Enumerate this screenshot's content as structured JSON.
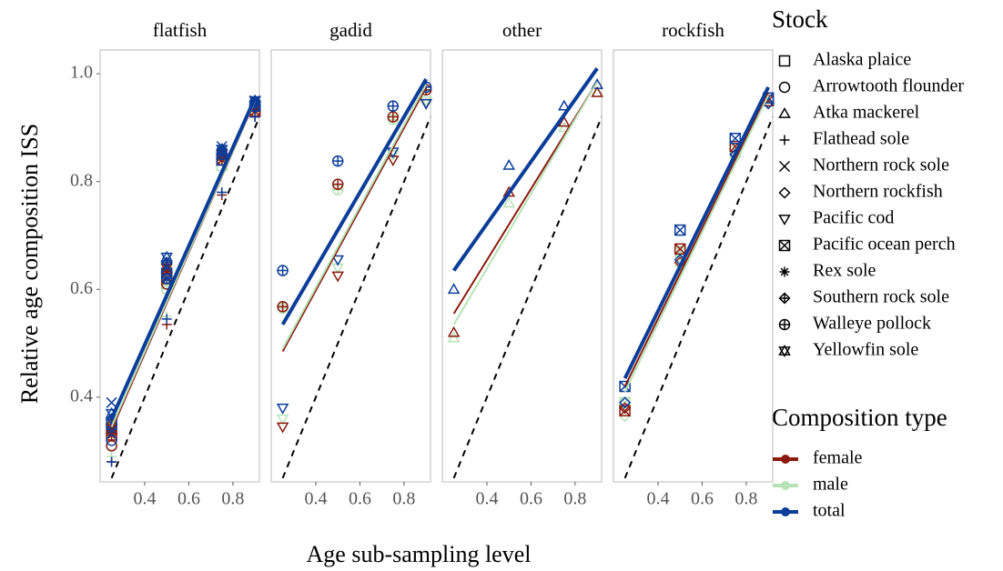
{
  "chart_data": {
    "type": "scatter",
    "y_label": "Relative age composition ISS",
    "x_label": "Age sub-sampling level",
    "ylim": [
      0.243,
      1.044
    ],
    "yticks": [
      0.4,
      0.6,
      0.8,
      {
        "value": 1.0,
        "label": "1.0"
      }
    ],
    "xlim": [
      0.198,
      0.92
    ],
    "xticks": [
      0.4,
      0.6,
      0.8
    ],
    "stock_title": "Stock",
    "stocks": [
      "Alaska plaice",
      "Arrowtooth flounder",
      "Atka mackerel",
      "Flathead sole",
      "Northern rock sole",
      "Northern rockfish",
      "Pacific cod",
      "Pacific ocean perch",
      "Rex sole",
      "Southern rock sole",
      "Walleye pollock",
      "Yellowfin sole"
    ],
    "composition_title": "Composition type",
    "compositions": [
      {
        "name": "female",
        "color": "#8b1a0e"
      },
      {
        "name": "male",
        "color": "#b5e3b5"
      },
      {
        "name": "total",
        "color": "#0b3d99"
      }
    ],
    "reference_line": {
      "x": [
        0.25,
        0.92
      ],
      "values": [
        0.25,
        0.92
      ]
    },
    "facets": [
      {
        "title": "flatfish",
        "x": [
          0.25,
          0.5,
          0.75,
          0.9
        ],
        "series": [
          {
            "stock": "Alaska plaice",
            "composition": "male",
            "values": [
              0.34,
              0.61,
              0.83,
              0.93
            ]
          },
          {
            "stock": "Arrowtooth flounder",
            "composition": "male",
            "values": [
              0.31,
              0.6,
              0.84,
              0.93
            ]
          },
          {
            "stock": "Flathead sole",
            "composition": "male",
            "values": [
              0.29,
              0.55,
              0.78,
              0.92
            ]
          },
          {
            "stock": "Northern rock sole",
            "composition": "male",
            "values": [
              0.35,
              0.62,
              0.85,
              0.94
            ]
          },
          {
            "stock": "Rex sole",
            "composition": "male",
            "values": [
              0.33,
              0.61,
              0.84,
              0.93
            ]
          },
          {
            "stock": "Southern rock sole",
            "composition": "male",
            "values": [
              0.34,
              0.63,
              0.85,
              0.94
            ]
          },
          {
            "stock": "Yellowfin sole",
            "composition": "male",
            "values": [
              0.35,
              0.64,
              0.85,
              0.94
            ]
          },
          {
            "stock": "Alaska plaice",
            "composition": "female",
            "values": [
              0.33,
              0.62,
              0.84,
              0.93
            ]
          },
          {
            "stock": "Arrowtooth flounder",
            "composition": "female",
            "values": [
              0.31,
              0.61,
              0.84,
              0.93
            ]
          },
          {
            "stock": "Flathead sole",
            "composition": "female",
            "values": [
              0.28,
              0.535,
              0.775,
              0.92
            ]
          },
          {
            "stock": "Northern rock sole",
            "composition": "female",
            "values": [
              0.34,
              0.63,
              0.85,
              0.94
            ]
          },
          {
            "stock": "Rex sole",
            "composition": "female",
            "values": [
              0.33,
              0.62,
              0.84,
              0.93
            ]
          },
          {
            "stock": "Southern rock sole",
            "composition": "female",
            "values": [
              0.35,
              0.63,
              0.85,
              0.94
            ]
          },
          {
            "stock": "Yellowfin sole",
            "composition": "female",
            "values": [
              0.34,
              0.64,
              0.85,
              0.94
            ]
          },
          {
            "stock": "Alaska plaice",
            "composition": "total",
            "values": [
              0.35,
              0.63,
              0.84,
              0.94
            ]
          },
          {
            "stock": "Arrowtooth flounder",
            "composition": "total",
            "values": [
              0.32,
              0.62,
              0.85,
              0.94
            ]
          },
          {
            "stock": "Flathead sole",
            "composition": "total",
            "values": [
              0.28,
              0.545,
              0.78,
              0.92
            ]
          },
          {
            "stock": "Northern rock sole",
            "composition": "total",
            "values": [
              0.39,
              0.64,
              0.865,
              0.95
            ]
          },
          {
            "stock": "Rex sole",
            "composition": "total",
            "values": [
              0.34,
              0.62,
              0.85,
              0.94
            ]
          },
          {
            "stock": "Southern rock sole",
            "composition": "total",
            "values": [
              0.36,
              0.65,
              0.86,
              0.95
            ]
          },
          {
            "stock": "Yellowfin sole",
            "composition": "total",
            "values": [
              0.37,
              0.66,
              0.86,
              0.95
            ]
          }
        ],
        "fits": [
          {
            "composition": "female",
            "x": [
              0.25,
              0.9
            ],
            "values": [
              0.34,
              0.95
            ]
          },
          {
            "composition": "male",
            "x": [
              0.25,
              0.9
            ],
            "values": [
              0.345,
              0.95
            ]
          },
          {
            "composition": "total",
            "x": [
              0.25,
              0.9
            ],
            "values": [
              0.36,
              0.955
            ]
          }
        ]
      },
      {
        "title": "gadid",
        "x": [
          0.25,
          0.5,
          0.75,
          0.9
        ],
        "series": [
          {
            "stock": "Pacific cod",
            "composition": "male",
            "values": [
              0.36,
              0.64,
              0.85,
              0.95
            ]
          },
          {
            "stock": "Walleye pollock",
            "composition": "male",
            "values": [
              0.565,
              0.785,
              0.915,
              0.97
            ]
          },
          {
            "stock": "Pacific cod",
            "composition": "female",
            "values": [
              0.345,
              0.625,
              0.84,
              0.945
            ]
          },
          {
            "stock": "Walleye pollock",
            "composition": "female",
            "values": [
              0.568,
              0.795,
              0.92,
              0.97
            ]
          },
          {
            "stock": "Pacific cod",
            "composition": "total",
            "values": [
              0.38,
              0.655,
              0.855,
              0.945
            ]
          },
          {
            "stock": "Walleye pollock",
            "composition": "total",
            "values": [
              0.635,
              0.838,
              0.94,
              0.975
            ]
          }
        ],
        "fits": [
          {
            "composition": "female",
            "x": [
              0.25,
              0.9
            ],
            "values": [
              0.485,
              0.975
            ]
          },
          {
            "composition": "male",
            "x": [
              0.25,
              0.9
            ],
            "values": [
              0.49,
              0.98
            ]
          },
          {
            "composition": "total",
            "x": [
              0.25,
              0.9
            ],
            "values": [
              0.535,
              0.99
            ]
          }
        ]
      },
      {
        "title": "other",
        "x": [
          0.25,
          0.5,
          0.75,
          0.9
        ],
        "series": [
          {
            "stock": "Atka mackerel",
            "composition": "male",
            "values": [
              0.51,
              0.76,
              0.9,
              0.965
            ]
          },
          {
            "stock": "Atka mackerel",
            "composition": "female",
            "values": [
              0.52,
              0.78,
              0.91,
              0.965
            ]
          },
          {
            "stock": "Atka mackerel",
            "composition": "total",
            "values": [
              0.6,
              0.83,
              0.94,
              0.98
            ]
          }
        ],
        "fits": [
          {
            "composition": "female",
            "x": [
              0.25,
              0.9
            ],
            "values": [
              0.555,
              0.985
            ]
          },
          {
            "composition": "male",
            "x": [
              0.25,
              0.9
            ],
            "values": [
              0.535,
              0.985
            ]
          },
          {
            "composition": "total",
            "x": [
              0.25,
              0.9
            ],
            "values": [
              0.635,
              1.01
            ]
          }
        ]
      },
      {
        "title": "rockfish",
        "x": [
          0.25,
          0.5,
          0.75,
          0.9
        ],
        "series": [
          {
            "stock": "Northern rockfish",
            "composition": "male",
            "values": [
              0.365,
              0.645,
              0.845,
              0.945
            ]
          },
          {
            "stock": "Pacific ocean perch",
            "composition": "male",
            "values": [
              0.39,
              0.67,
              0.86,
              0.95
            ]
          },
          {
            "stock": "Northern rockfish",
            "composition": "female",
            "values": [
              0.38,
              0.65,
              0.85,
              0.945
            ]
          },
          {
            "stock": "Pacific ocean perch",
            "composition": "female",
            "values": [
              0.375,
              0.675,
              0.865,
              0.95
            ]
          },
          {
            "stock": "Northern rockfish",
            "composition": "total",
            "values": [
              0.39,
              0.655,
              0.85,
              0.945
            ]
          },
          {
            "stock": "Pacific ocean perch",
            "composition": "total",
            "values": [
              0.42,
              0.71,
              0.88,
              0.955
            ]
          }
        ],
        "fits": [
          {
            "composition": "female",
            "x": [
              0.25,
              0.9
            ],
            "values": [
              0.42,
              0.965
            ]
          },
          {
            "composition": "male",
            "x": [
              0.25,
              0.9
            ],
            "values": [
              0.41,
              0.96
            ]
          },
          {
            "composition": "total",
            "x": [
              0.25,
              0.9
            ],
            "values": [
              0.435,
              0.975
            ]
          }
        ]
      }
    ]
  }
}
